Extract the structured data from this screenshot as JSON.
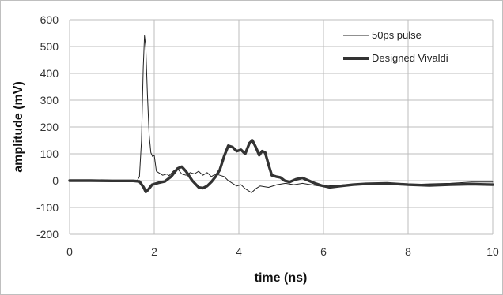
{
  "chart_data": {
    "type": "line",
    "title": "",
    "xlabel": "time (ns)",
    "ylabel": "amplitude (mV)",
    "xlim": [
      0,
      10
    ],
    "ylim": [
      -200,
      600
    ],
    "x_ticks": [
      "0",
      "2",
      "4",
      "6",
      "8",
      "10"
    ],
    "y_ticks": [
      "-200",
      "-100",
      "0",
      "100",
      "200",
      "300",
      "400",
      "500",
      "600"
    ],
    "grid": true,
    "legend_position": "top-right",
    "series": [
      {
        "name": "50ps pulse",
        "color": "#222222",
        "style": "thin",
        "points": [
          [
            0,
            0
          ],
          [
            0.5,
            0
          ],
          [
            1.0,
            -1
          ],
          [
            1.5,
            0
          ],
          [
            1.6,
            1
          ],
          [
            1.65,
            15
          ],
          [
            1.7,
            150
          ],
          [
            1.74,
            420
          ],
          [
            1.77,
            540
          ],
          [
            1.8,
            500
          ],
          [
            1.84,
            320
          ],
          [
            1.88,
            170
          ],
          [
            1.92,
            105
          ],
          [
            1.96,
            90
          ],
          [
            2.0,
            95
          ],
          [
            2.05,
            35
          ],
          [
            2.1,
            30
          ],
          [
            2.2,
            20
          ],
          [
            2.3,
            25
          ],
          [
            2.35,
            18
          ],
          [
            2.45,
            35
          ],
          [
            2.55,
            45
          ],
          [
            2.65,
            25
          ],
          [
            2.75,
            20
          ],
          [
            2.85,
            30
          ],
          [
            2.95,
            25
          ],
          [
            3.05,
            35
          ],
          [
            3.15,
            20
          ],
          [
            3.25,
            30
          ],
          [
            3.35,
            15
          ],
          [
            3.45,
            25
          ],
          [
            3.55,
            20
          ],
          [
            3.65,
            15
          ],
          [
            3.75,
            0
          ],
          [
            3.85,
            -10
          ],
          [
            3.95,
            -20
          ],
          [
            4.05,
            -15
          ],
          [
            4.15,
            -30
          ],
          [
            4.3,
            -45
          ],
          [
            4.4,
            -30
          ],
          [
            4.5,
            -20
          ],
          [
            4.7,
            -25
          ],
          [
            4.9,
            -15
          ],
          [
            5.1,
            -10
          ],
          [
            5.3,
            -15
          ],
          [
            5.5,
            -10
          ],
          [
            5.7,
            -15
          ],
          [
            5.9,
            -20
          ],
          [
            6.1,
            -20
          ],
          [
            6.5,
            -15
          ],
          [
            7.0,
            -10
          ],
          [
            7.5,
            -12
          ],
          [
            8.0,
            -15
          ],
          [
            8.5,
            -12
          ],
          [
            9.0,
            -10
          ],
          [
            9.5,
            -5
          ],
          [
            10,
            -5
          ]
        ]
      },
      {
        "name": "Designed Vivaldi",
        "color": "#333333",
        "style": "thick",
        "points": [
          [
            0,
            0
          ],
          [
            0.5,
            0
          ],
          [
            1.0,
            -1
          ],
          [
            1.5,
            -1
          ],
          [
            1.65,
            -3
          ],
          [
            1.75,
            -25
          ],
          [
            1.8,
            -42
          ],
          [
            1.85,
            -35
          ],
          [
            1.95,
            -15
          ],
          [
            2.1,
            -8
          ],
          [
            2.25,
            -3
          ],
          [
            2.4,
            15
          ],
          [
            2.55,
            45
          ],
          [
            2.65,
            52
          ],
          [
            2.75,
            35
          ],
          [
            2.9,
            0
          ],
          [
            3.05,
            -25
          ],
          [
            3.15,
            -28
          ],
          [
            3.25,
            -20
          ],
          [
            3.35,
            -5
          ],
          [
            3.45,
            15
          ],
          [
            3.55,
            40
          ],
          [
            3.65,
            90
          ],
          [
            3.75,
            130
          ],
          [
            3.85,
            125
          ],
          [
            3.95,
            110
          ],
          [
            4.05,
            115
          ],
          [
            4.15,
            100
          ],
          [
            4.25,
            140
          ],
          [
            4.32,
            150
          ],
          [
            4.4,
            125
          ],
          [
            4.48,
            95
          ],
          [
            4.55,
            110
          ],
          [
            4.62,
            105
          ],
          [
            4.7,
            60
          ],
          [
            4.78,
            20
          ],
          [
            4.88,
            15
          ],
          [
            4.98,
            12
          ],
          [
            5.08,
            0
          ],
          [
            5.2,
            -5
          ],
          [
            5.35,
            5
          ],
          [
            5.5,
            10
          ],
          [
            5.65,
            0
          ],
          [
            5.8,
            -10
          ],
          [
            5.95,
            -18
          ],
          [
            6.15,
            -25
          ],
          [
            6.4,
            -20
          ],
          [
            6.7,
            -15
          ],
          [
            7.0,
            -12
          ],
          [
            7.5,
            -10
          ],
          [
            8.0,
            -15
          ],
          [
            8.5,
            -18
          ],
          [
            9.0,
            -15
          ],
          [
            9.5,
            -13
          ],
          [
            10,
            -15
          ]
        ]
      }
    ]
  }
}
